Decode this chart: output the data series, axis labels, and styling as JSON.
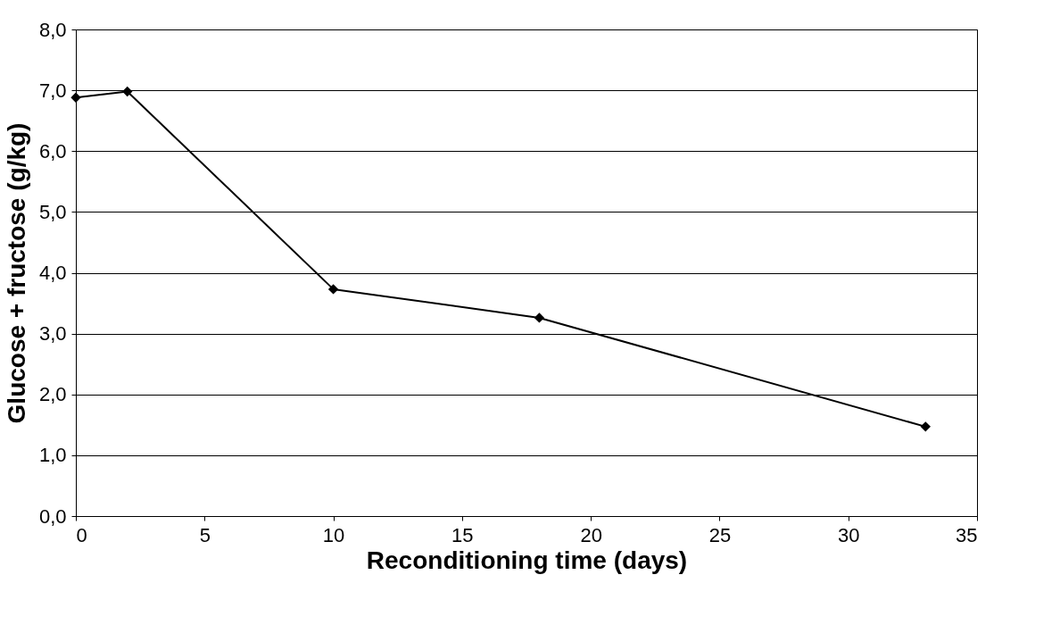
{
  "chart_data": {
    "type": "line",
    "xlabel": "Reconditioning time (days)",
    "ylabel": "Glucose + fructose (g/kg)",
    "x": [
      0,
      2,
      10,
      18,
      33
    ],
    "series": [
      {
        "color": "#000000",
        "values": [
          6.88,
          6.98,
          3.73,
          3.26,
          1.47
        ]
      }
    ],
    "xlim": [
      0,
      35
    ],
    "xticks": [
      0,
      5,
      10,
      15,
      20,
      25,
      30,
      35
    ],
    "ylim": [
      0,
      8
    ],
    "yticks": [
      {
        "value": 0,
        "label": "0,0"
      },
      {
        "value": 1,
        "label": "1,0"
      },
      {
        "value": 2,
        "label": "2,0"
      },
      {
        "value": 3,
        "label": "3,0"
      },
      {
        "value": 4,
        "label": "4,0"
      },
      {
        "value": 5,
        "label": "5,0"
      },
      {
        "value": 6,
        "label": "6,0"
      },
      {
        "value": 7,
        "label": "7,0"
      },
      {
        "value": 8,
        "label": "8,0"
      }
    ],
    "grid": "y",
    "legend": false,
    "marker": "diamond",
    "line_style": "solid"
  }
}
